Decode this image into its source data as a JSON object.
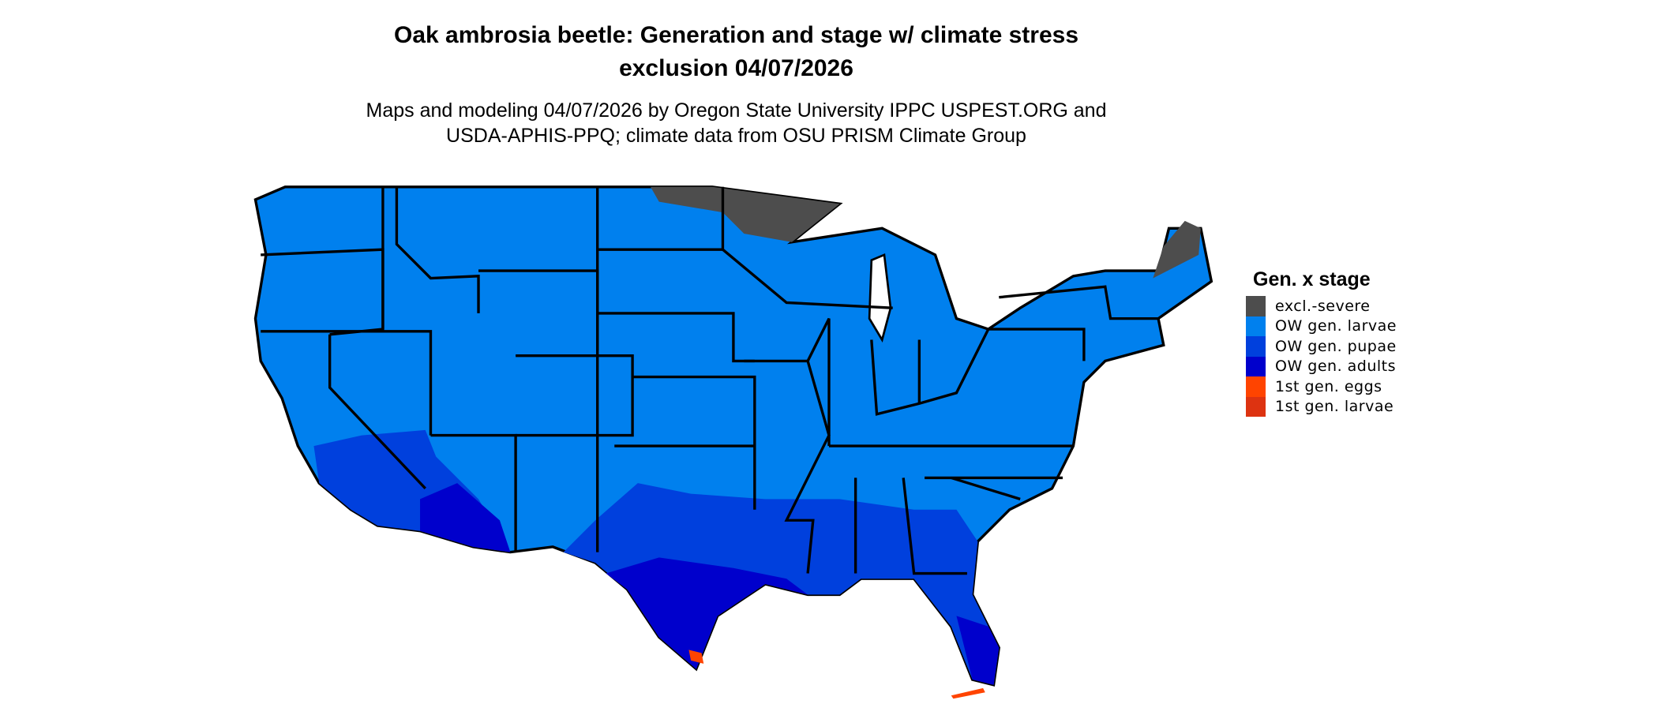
{
  "title_line1": "Oak ambrosia beetle: Generation and stage w/ climate stress",
  "title_line2": "exclusion 04/07/2026",
  "subtitle_line1": "Maps and modeling 04/07/2026 by Oregon State University IPPC USPEST.ORG and",
  "subtitle_line2": "USDA-APHIS-PPQ; climate data from OSU PRISM Climate Group",
  "legend": {
    "title": "Gen. x stage",
    "items": [
      {
        "label": "excl.-severe",
        "color": "#4d4d4d"
      },
      {
        "label": "OW gen. larvae",
        "color": "#0080ee"
      },
      {
        "label": "OW gen. pupae",
        "color": "#0040dd"
      },
      {
        "label": "OW gen. adults",
        "color": "#0000cc"
      },
      {
        "label": "1st gen. eggs",
        "color": "#ff4400"
      },
      {
        "label": "1st gen. larvae",
        "color": "#dd3311"
      }
    ]
  },
  "region": "Contiguous United States"
}
